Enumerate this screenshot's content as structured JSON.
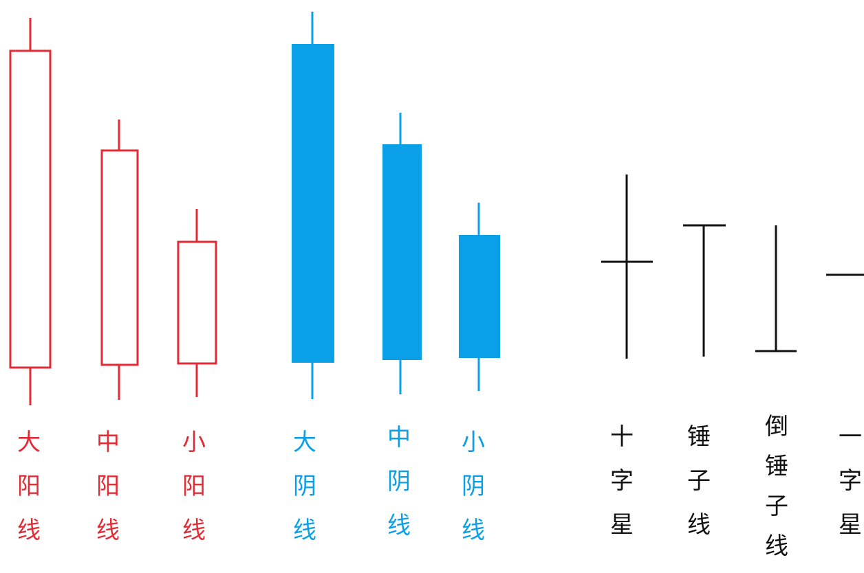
{
  "colors": {
    "yang": "#e32b36",
    "yin": "#0aa0e8",
    "special": "#111111"
  },
  "labels": {
    "big_yang": [
      "大",
      "阳",
      "线"
    ],
    "mid_yang": [
      "中",
      "阳",
      "线"
    ],
    "small_yang": [
      "小",
      "阳",
      "线"
    ],
    "big_yin": [
      "大",
      "阴",
      "线"
    ],
    "mid_yin": [
      "中",
      "阴",
      "线"
    ],
    "small_yin": [
      "小",
      "阴",
      "线"
    ],
    "cross_star": [
      "十",
      "字",
      "星"
    ],
    "hammer": [
      "锤",
      "子",
      "线"
    ],
    "inverted_hammer": [
      "倒",
      "锤",
      "子",
      "线"
    ],
    "one_star": [
      "一",
      "字",
      "星"
    ]
  }
}
